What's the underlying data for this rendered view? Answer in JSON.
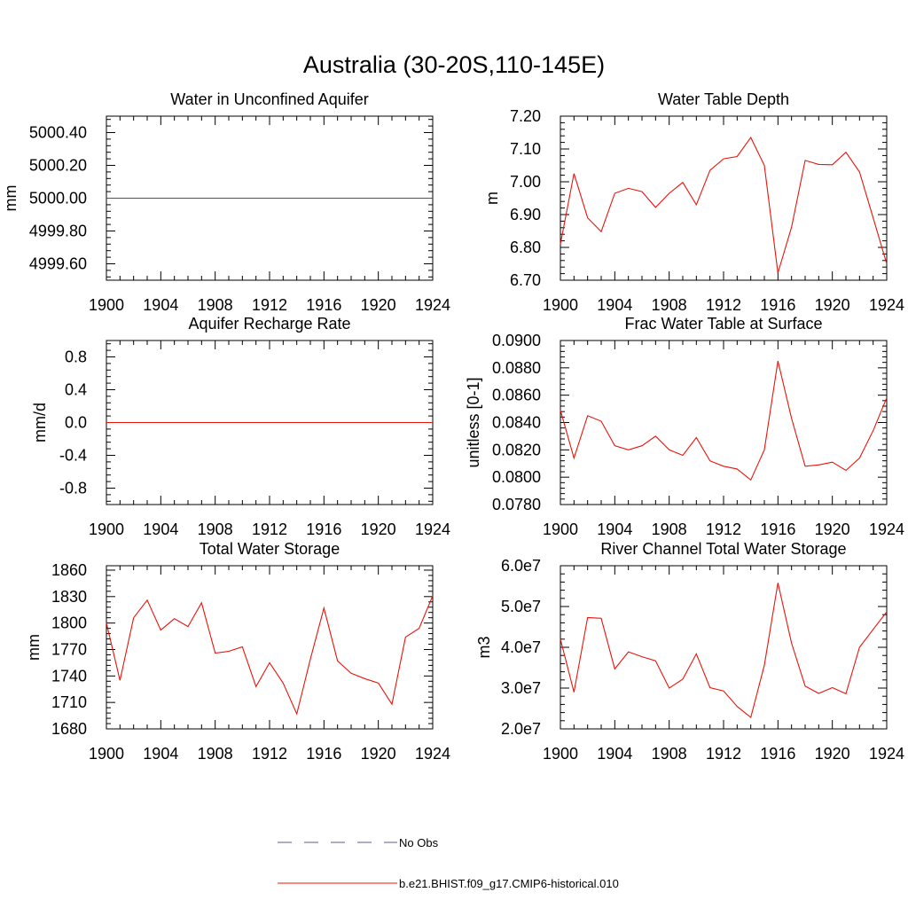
{
  "figure": {
    "title": "Australia (30-20S,110-145E)"
  },
  "legend": {
    "items": [
      {
        "label": "No Obs",
        "style": "dashed",
        "color": "#5a5a9a"
      },
      {
        "label": "b.e21.BHIST.f09_g17.CMIP6-historical.010",
        "style": "solid",
        "color": "#e8140c"
      }
    ]
  },
  "chart_data": [
    {
      "type": "line",
      "title": "Water in Unconfined Aquifer",
      "ylabel": "mm",
      "xlim": [
        1900,
        1924
      ],
      "ylim": [
        4999.5,
        5000.5
      ],
      "xticks": [
        1900,
        1904,
        1908,
        1912,
        1916,
        1920,
        1924
      ],
      "yticks": [
        4999.6,
        4999.8,
        5000.0,
        5000.2,
        5000.4
      ],
      "ytick_labels": [
        "4999.60",
        "4999.80",
        "5000.00",
        "5000.20",
        "5000.40"
      ],
      "x": [
        1900,
        1924
      ],
      "series": [
        {
          "values": [
            5000.0,
            5000.0
          ],
          "color": "#e8140c"
        }
      ]
    },
    {
      "type": "line",
      "title": "Water Table Depth",
      "ylabel": "m",
      "xlim": [
        1900,
        1924
      ],
      "ylim": [
        6.7,
        7.2
      ],
      "xticks": [
        1900,
        1904,
        1908,
        1912,
        1916,
        1920,
        1924
      ],
      "yticks": [
        6.7,
        6.8,
        6.9,
        7.0,
        7.1,
        7.2
      ],
      "ytick_labels": [
        "6.70",
        "6.80",
        "6.90",
        "7.00",
        "7.10",
        "7.20"
      ],
      "x": [
        1900,
        1901,
        1902,
        1903,
        1904,
        1905,
        1906,
        1907,
        1908,
        1909,
        1910,
        1911,
        1912,
        1913,
        1914,
        1915,
        1916,
        1917,
        1918,
        1919,
        1920,
        1921,
        1922,
        1923,
        1924
      ],
      "series": [
        {
          "values": [
            6.81,
            7.025,
            6.89,
            6.848,
            6.965,
            6.98,
            6.97,
            6.922,
            6.965,
            6.998,
            6.93,
            7.035,
            7.07,
            7.077,
            7.135,
            7.05,
            6.722,
            6.862,
            7.065,
            7.053,
            7.052,
            7.09,
            7.03,
            6.89,
            6.75
          ],
          "color": "#e8140c"
        }
      ]
    },
    {
      "type": "line",
      "title": "Aquifer Recharge Rate",
      "ylabel": "mm/d",
      "xlim": [
        1900,
        1924
      ],
      "ylim": [
        -1.0,
        1.0
      ],
      "xticks": [
        1900,
        1904,
        1908,
        1912,
        1916,
        1920,
        1924
      ],
      "yticks": [
        -0.8,
        -0.4,
        0.0,
        0.4,
        0.8
      ],
      "ytick_labels": [
        "-0.8",
        "-0.4",
        "0.0",
        "0.4",
        "0.8"
      ],
      "x": [
        1900,
        1924
      ],
      "series": [
        {
          "values": [
            0.0,
            0.0
          ],
          "color": "#e8140c"
        }
      ]
    },
    {
      "type": "line",
      "title": "Frac Water Table at Surface",
      "ylabel": "unitless [0-1]",
      "xlim": [
        1900,
        1924
      ],
      "ylim": [
        0.078,
        0.09
      ],
      "xticks": [
        1900,
        1904,
        1908,
        1912,
        1916,
        1920,
        1924
      ],
      "yticks": [
        0.078,
        0.08,
        0.082,
        0.084,
        0.086,
        0.088,
        0.09
      ],
      "ytick_labels": [
        "0.0780",
        "0.0800",
        "0.0820",
        "0.0840",
        "0.0860",
        "0.0880",
        "0.0900"
      ],
      "x": [
        1900,
        1901,
        1902,
        1903,
        1904,
        1905,
        1906,
        1907,
        1908,
        1909,
        1910,
        1911,
        1912,
        1913,
        1914,
        1915,
        1916,
        1917,
        1918,
        1919,
        1920,
        1921,
        1922,
        1923,
        1924
      ],
      "series": [
        {
          "values": [
            0.0849,
            0.0814,
            0.0845,
            0.0841,
            0.0823,
            0.082,
            0.0823,
            0.083,
            0.082,
            0.0816,
            0.0829,
            0.0812,
            0.0808,
            0.0806,
            0.0798,
            0.082,
            0.0885,
            0.0843,
            0.0808,
            0.0809,
            0.0811,
            0.0805,
            0.0814,
            0.0834,
            0.0858
          ],
          "color": "#e8140c"
        }
      ]
    },
    {
      "type": "line",
      "title": "Total Water Storage",
      "ylabel": "mm",
      "xlim": [
        1900,
        1924
      ],
      "ylim": [
        1680,
        1865
      ],
      "xticks": [
        1900,
        1904,
        1908,
        1912,
        1916,
        1920,
        1924
      ],
      "yticks": [
        1680,
        1710,
        1740,
        1770,
        1800,
        1830,
        1860
      ],
      "ytick_labels": [
        "1680",
        "1710",
        "1740",
        "1770",
        "1800",
        "1830",
        "1860"
      ],
      "x": [
        1900,
        1901,
        1902,
        1903,
        1904,
        1905,
        1906,
        1907,
        1908,
        1909,
        1910,
        1911,
        1912,
        1913,
        1914,
        1915,
        1916,
        1917,
        1918,
        1919,
        1920,
        1921,
        1922,
        1923,
        1924
      ],
      "series": [
        {
          "values": [
            1800,
            1735,
            1806,
            1826,
            1792,
            1805,
            1796,
            1823,
            1766,
            1768,
            1773,
            1728,
            1755,
            1732,
            1697,
            1759,
            1817,
            1757,
            1743,
            1737,
            1732,
            1708,
            1784,
            1794,
            1831
          ],
          "color": "#e8140c"
        }
      ]
    },
    {
      "type": "line",
      "title": "River Channel Total Water Storage",
      "ylabel": "m3",
      "xlim": [
        1900,
        1924
      ],
      "ylim": [
        20000000,
        60000000
      ],
      "xticks": [
        1900,
        1904,
        1908,
        1912,
        1916,
        1920,
        1924
      ],
      "yticks": [
        20000000,
        30000000,
        40000000,
        50000000,
        60000000
      ],
      "ytick_labels": [
        "2.0e7",
        "3.0e7",
        "4.0e7",
        "5.0e7",
        "6.0e7"
      ],
      "x": [
        1900,
        1901,
        1902,
        1903,
        1904,
        1905,
        1906,
        1907,
        1908,
        1909,
        1910,
        1911,
        1912,
        1913,
        1914,
        1915,
        1916,
        1917,
        1918,
        1919,
        1920,
        1921,
        1922,
        1923,
        1924
      ],
      "series": [
        {
          "values": [
            42000000,
            29000000,
            47300000,
            47100000,
            34700000,
            38900000,
            37700000,
            36700000,
            30000000,
            32200000,
            38400000,
            30100000,
            29300000,
            25500000,
            22800000,
            35600000,
            55800000,
            41000000,
            30500000,
            28700000,
            30100000,
            28600000,
            40000000,
            44400000,
            48700000
          ],
          "color": "#e8140c"
        }
      ]
    }
  ]
}
